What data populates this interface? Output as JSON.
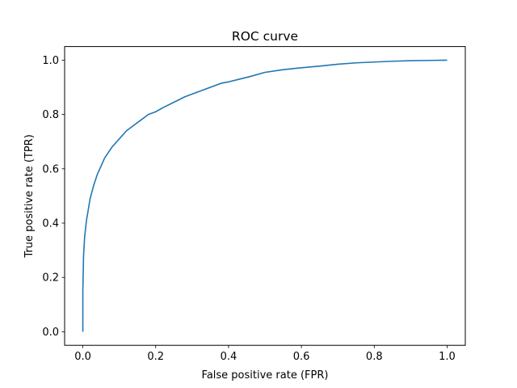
{
  "chart_data": {
    "type": "line",
    "title": "ROC curve",
    "xlabel": "False positive rate (FPR)",
    "ylabel": "True positive rate (TPR)",
    "xlim": [
      -0.05,
      1.05
    ],
    "ylim": [
      -0.05,
      1.05
    ],
    "grid": false,
    "legend": "none",
    "xticks": [
      "0.0",
      "0.2",
      "0.4",
      "0.6",
      "0.8",
      "1.0"
    ],
    "yticks": [
      "0.0",
      "0.2",
      "0.4",
      "0.6",
      "0.8",
      "1.0"
    ],
    "series": [
      {
        "color": "#1f77b4",
        "x": [
          0.0,
          0.0,
          0.002,
          0.005,
          0.01,
          0.015,
          0.02,
          0.03,
          0.04,
          0.05,
          0.06,
          0.07,
          0.08,
          0.09,
          0.1,
          0.12,
          0.14,
          0.16,
          0.18,
          0.2,
          0.22,
          0.25,
          0.28,
          0.3,
          0.33,
          0.36,
          0.38,
          0.4,
          0.43,
          0.46,
          0.5,
          0.55,
          0.6,
          0.65,
          0.7,
          0.75,
          0.8,
          0.85,
          0.9,
          0.95,
          1.0
        ],
        "y": [
          0.0,
          0.15,
          0.28,
          0.35,
          0.41,
          0.45,
          0.49,
          0.54,
          0.58,
          0.61,
          0.64,
          0.66,
          0.68,
          0.695,
          0.71,
          0.74,
          0.76,
          0.78,
          0.8,
          0.81,
          0.825,
          0.845,
          0.865,
          0.875,
          0.89,
          0.905,
          0.915,
          0.92,
          0.93,
          0.94,
          0.955,
          0.965,
          0.972,
          0.978,
          0.985,
          0.99,
          0.993,
          0.996,
          0.998,
          0.999,
          1.0
        ]
      }
    ]
  }
}
